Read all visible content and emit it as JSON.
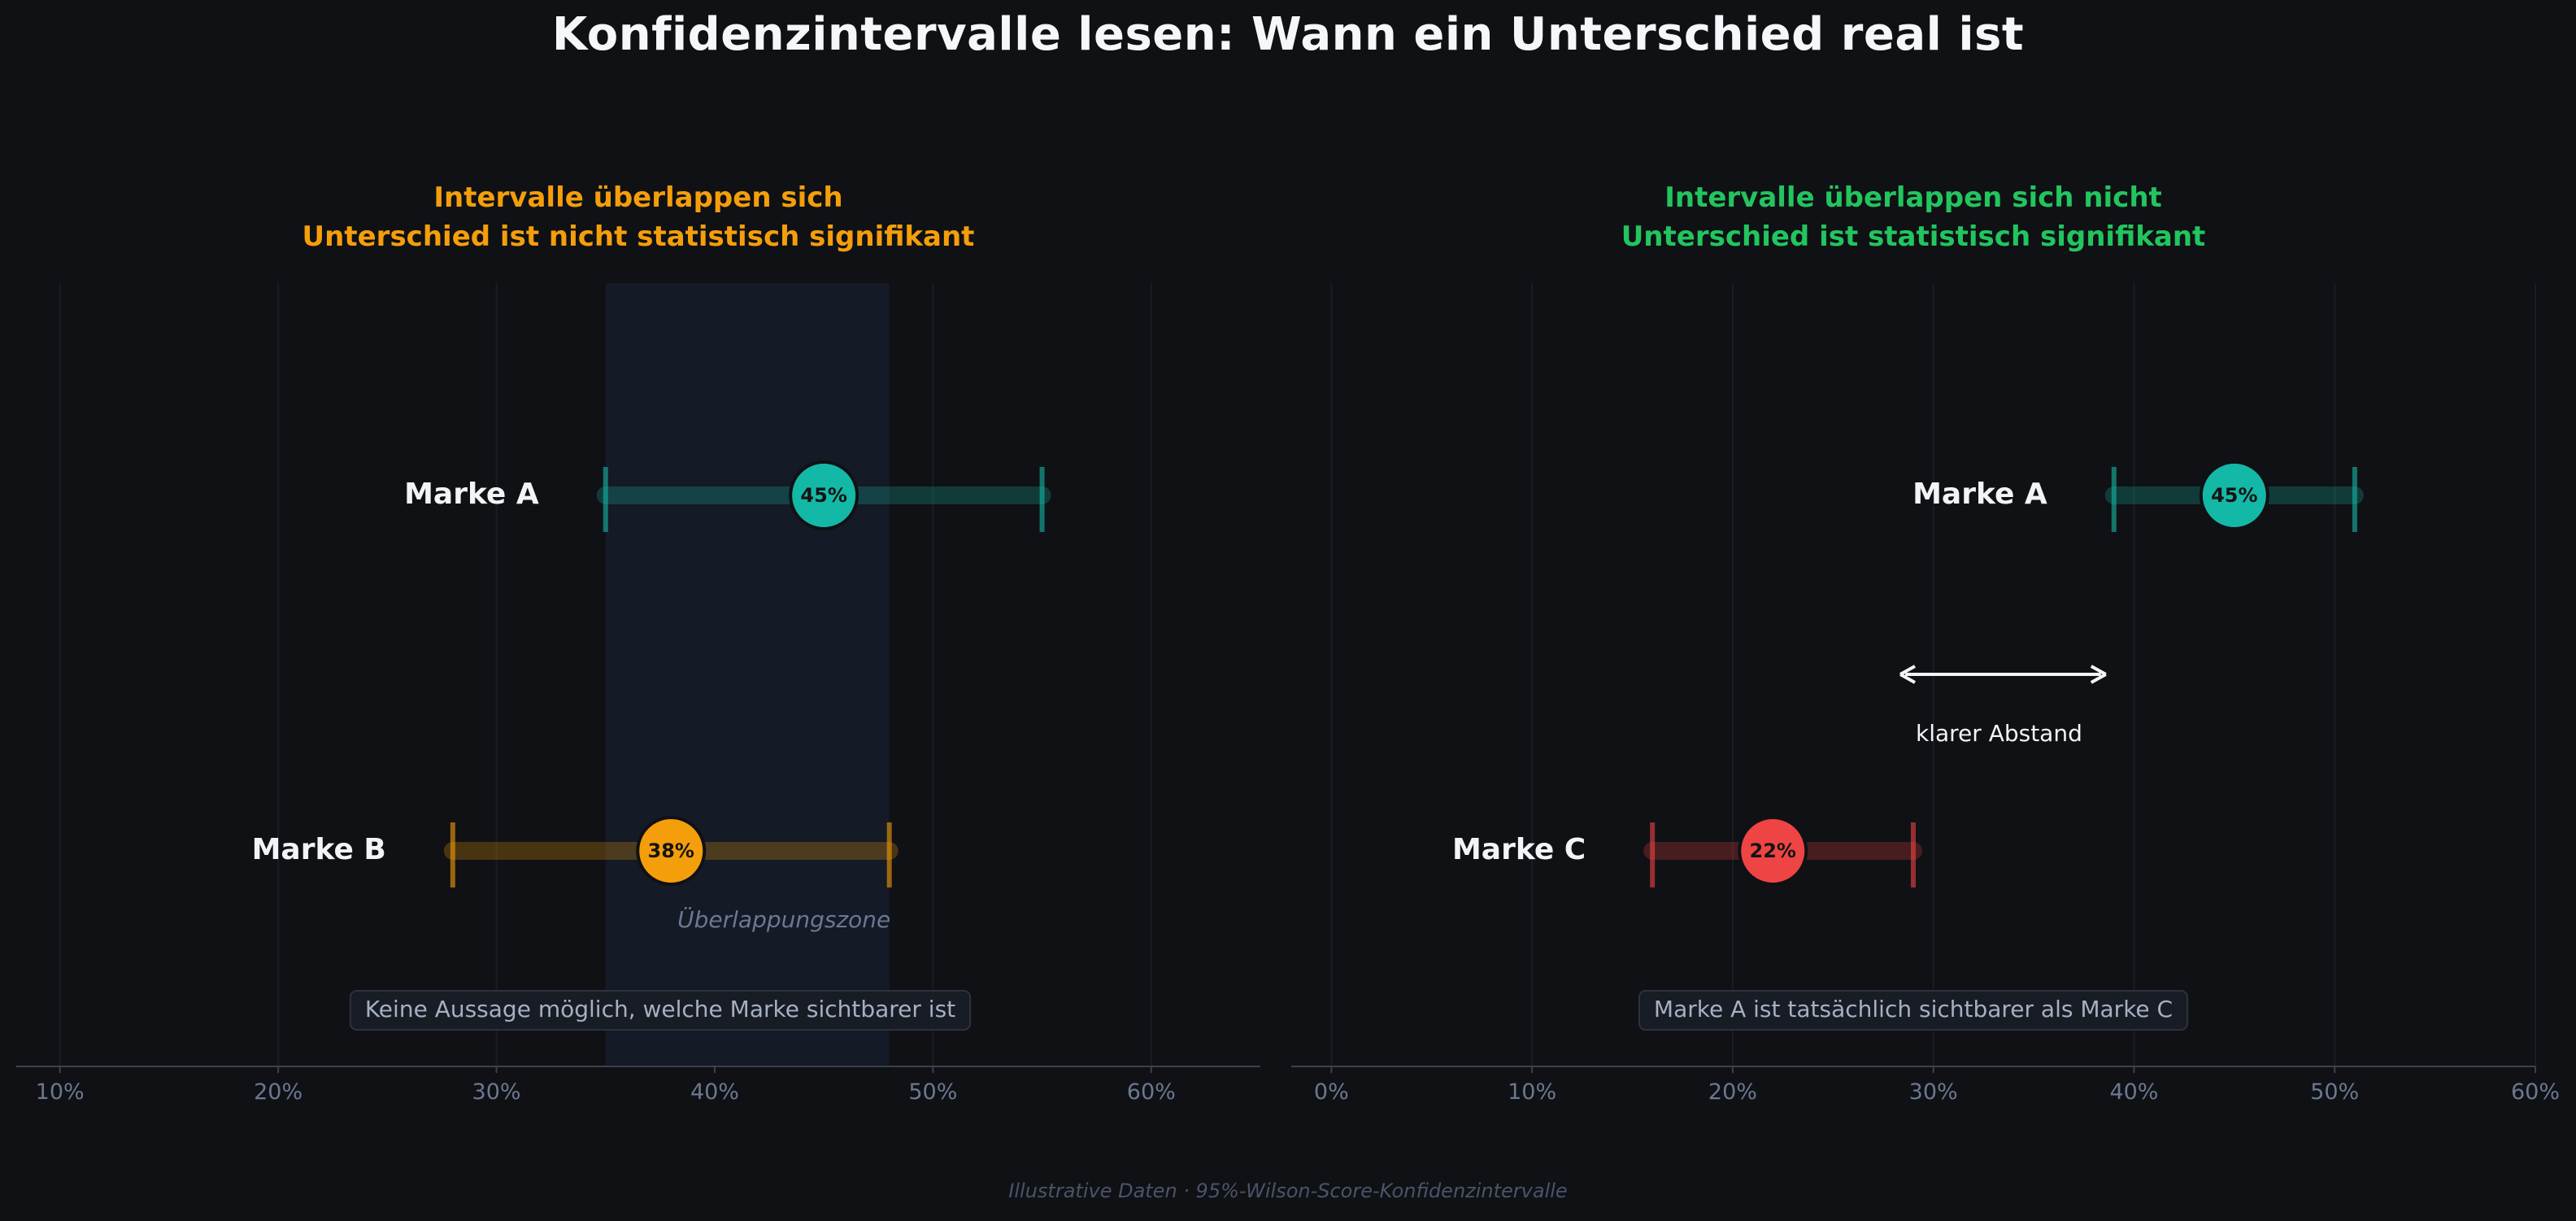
{
  "title": "Konfidenzintervalle lesen: Wann ein Unterschied real ist",
  "footnote": "Illustrative Daten  ·  95%-Wilson-Score-Konfidenzintervalle",
  "colors": {
    "background": "#0f1115",
    "teal": "#14b8a6",
    "orange": "#f59e0b",
    "red": "#ef4444",
    "green": "#22c55e",
    "muted": "#6b7891"
  },
  "chart_data": [
    {
      "type": "interval",
      "title_lines": [
        "Intervalle überlappen sich",
        "Unterschied ist nicht statistisch signifikant"
      ],
      "title_color": "#f59e0b",
      "xlim": [
        8,
        65
      ],
      "xticks": [
        10,
        20,
        30,
        40,
        50,
        60
      ],
      "xtick_labels": [
        "10%",
        "20%",
        "30%",
        "40%",
        "50%",
        "60%"
      ],
      "series": [
        {
          "name": "Marke A",
          "estimate": 45,
          "ci": [
            35,
            55
          ],
          "color": "#14b8a6",
          "label": "45%"
        },
        {
          "name": "Marke B",
          "estimate": 38,
          "ci": [
            28,
            48
          ],
          "color": "#f59e0b",
          "label": "38%"
        }
      ],
      "highlight_region": {
        "from": 35,
        "to": 48,
        "label": "Überlappungszone"
      },
      "conclusion": "Keine Aussage möglich, welche Marke sichtbarer ist",
      "grid": true
    },
    {
      "type": "interval",
      "title_lines": [
        "Intervalle überlappen sich nicht",
        "Unterschied ist statistisch signifikant"
      ],
      "title_color": "#22c55e",
      "xlim": [
        -2,
        60
      ],
      "xticks": [
        0,
        10,
        20,
        30,
        40,
        50,
        60
      ],
      "xtick_labels": [
        "0%",
        "10%",
        "20%",
        "30%",
        "40%",
        "50%",
        "60%"
      ],
      "series": [
        {
          "name": "Marke A",
          "estimate": 45,
          "ci": [
            39,
            51
          ],
          "color": "#14b8a6",
          "label": "45%"
        },
        {
          "name": "Marke C",
          "estimate": 22,
          "ci": [
            16,
            29
          ],
          "color": "#ef4444",
          "label": "22%"
        }
      ],
      "gap_annotation": {
        "from": 29,
        "to": 39,
        "label": "klarer Abstand"
      },
      "conclusion": "Marke A ist tatsächlich sichtbarer als Marke C",
      "grid": true
    }
  ]
}
